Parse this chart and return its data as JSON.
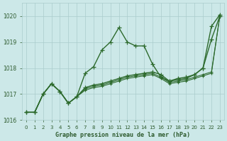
{
  "title": "Graphe pression niveau de la mer (hPa)",
  "bg_color": "#cce8e8",
  "grid_color": "#aacccc",
  "line_color": "#2d6a2d",
  "text_color": "#2d5a2d",
  "ylim": [
    1016.0,
    1020.5
  ],
  "yticks": [
    1016,
    1017,
    1018,
    1019,
    1020
  ],
  "hours": [
    0,
    1,
    2,
    3,
    4,
    5,
    6,
    7,
    8,
    9,
    10,
    11,
    12,
    13,
    14,
    15,
    16,
    17,
    18,
    19,
    20,
    21,
    22,
    23
  ],
  "line_volatile": [
    1016.3,
    1016.3,
    1017.0,
    1017.4,
    1017.1,
    1016.65,
    1016.9,
    1017.8,
    1018.05,
    1018.7,
    1019.0,
    1019.55,
    1019.0,
    1018.85,
    1018.85,
    1018.15,
    1017.65,
    null,
    null,
    null,
    null,
    null,
    null,
    null
  ],
  "line_main": [
    1016.3,
    1016.3,
    1017.0,
    1017.4,
    1017.1,
    1016.65,
    1016.9,
    1017.25,
    1017.35,
    1017.4,
    1017.5,
    1017.6,
    1017.7,
    1017.75,
    1017.8,
    1017.85,
    1017.75,
    1017.5,
    1017.55,
    1017.6,
    1017.75,
    1018.0,
    1019.1,
    1020.0
  ],
  "line_upper": [
    null,
    null,
    null,
    null,
    null,
    null,
    null,
    null,
    null,
    null,
    null,
    null,
    null,
    null,
    null,
    null,
    1017.65,
    1017.5,
    1017.6,
    1017.65,
    1017.75,
    1018.0,
    1019.6,
    1020.05
  ],
  "line_trend1": [
    1016.3,
    1016.3,
    1017.0,
    1017.4,
    1017.1,
    1016.65,
    1016.9,
    1017.2,
    1017.3,
    1017.35,
    1017.45,
    1017.55,
    1017.65,
    1017.7,
    1017.75,
    1017.8,
    1017.65,
    1017.45,
    1017.5,
    1017.55,
    1017.65,
    1017.75,
    1017.85,
    1020.0
  ],
  "line_trend2": [
    1016.3,
    1016.3,
    1017.0,
    1017.4,
    1017.1,
    1016.65,
    1016.9,
    1017.15,
    1017.25,
    1017.3,
    1017.4,
    1017.5,
    1017.6,
    1017.65,
    1017.7,
    1017.75,
    1017.6,
    1017.4,
    1017.45,
    1017.5,
    1017.6,
    1017.7,
    1017.8,
    1020.0
  ]
}
